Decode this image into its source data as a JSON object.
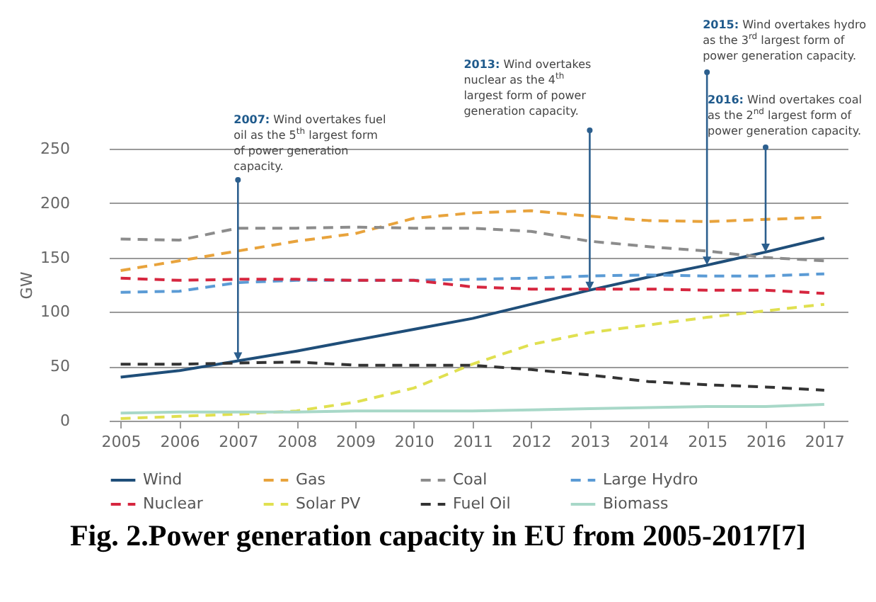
{
  "chart_data": {
    "type": "line",
    "title": "Fig. 2.Power generation capacity in EU from 2005-2017[7]",
    "ylabel": "GW",
    "x": [
      2005,
      2006,
      2007,
      2008,
      2009,
      2010,
      2011,
      2012,
      2013,
      2014,
      2015,
      2016,
      2017
    ],
    "xlim": [
      2004.8,
      2017.4
    ],
    "xticks": [
      2005,
      2006,
      2007,
      2008,
      2009,
      2010,
      2011,
      2012,
      2013,
      2014,
      2015,
      2016,
      2017
    ],
    "ylim": [
      0,
      250
    ],
    "yticks": [
      0,
      50,
      100,
      150,
      200,
      250
    ],
    "grid": "y",
    "legend": "bottom",
    "series": [
      {
        "name": "Wind",
        "color": "#1f4e79",
        "line_style": "solid",
        "values": [
          40,
          46,
          55,
          64,
          74,
          84,
          94,
          107,
          120,
          132,
          143,
          155,
          168
        ]
      },
      {
        "name": "Gas",
        "color": "#e8a33c",
        "line_style": "dashed",
        "values": [
          138,
          147,
          156,
          165,
          172,
          186,
          191,
          193,
          188,
          184,
          183,
          185,
          187
        ]
      },
      {
        "name": "Coal",
        "color": "#8c8c8c",
        "line_style": "dashed",
        "values": [
          167,
          166,
          177,
          177,
          178,
          177,
          177,
          174,
          165,
          160,
          156,
          150,
          147
        ]
      },
      {
        "name": "Large Hydro",
        "color": "#5b9bd5",
        "line_style": "dashed",
        "values": [
          118,
          119,
          127,
          129,
          129,
          129,
          130,
          131,
          133,
          134,
          133,
          133,
          135
        ]
      },
      {
        "name": "Nuclear",
        "color": "#d6263f",
        "line_style": "dashed",
        "values": [
          131,
          129,
          130,
          130,
          129,
          129,
          123,
          121,
          121,
          121,
          120,
          120,
          117
        ]
      },
      {
        "name": "Solar PV",
        "color": "#e0e050",
        "line_style": "dashed",
        "values": [
          2,
          4,
          6,
          9,
          17,
          30,
          52,
          70,
          81,
          88,
          95,
          101,
          107
        ]
      },
      {
        "name": "Fuel Oil",
        "color": "#333333",
        "line_style": "dashed",
        "values": [
          52,
          52,
          53,
          54,
          51,
          51,
          51,
          47,
          42,
          36,
          33,
          31,
          28
        ]
      },
      {
        "name": "Biomass",
        "color": "#a8d8c8",
        "line_style": "solid",
        "values": [
          7,
          8,
          8,
          8,
          9,
          9,
          9,
          10,
          11,
          12,
          13,
          13,
          15
        ]
      }
    ],
    "annotations": [
      {
        "text": "2007: Wind overtakes fuel oil as the 5$^{th}$ largest form of power generation capacity.",
        "x": 2007,
        "y": 55
      },
      {
        "text": "2013: Wind overtakes nuclear as the 4$^{th}$ largest form of power generation capacity.",
        "x": 2013,
        "y": 120
      },
      {
        "text": "2015: Wind overtakes hydro as the 3$^{rd}$ largest form of power generation capacity.",
        "x": 2015,
        "y": 143
      },
      {
        "text": "2016: Wind overtakes coal as the 2$^{nd}$ largest form of power generation capacity.",
        "x": 2016,
        "y": 155
      }
    ]
  }
}
